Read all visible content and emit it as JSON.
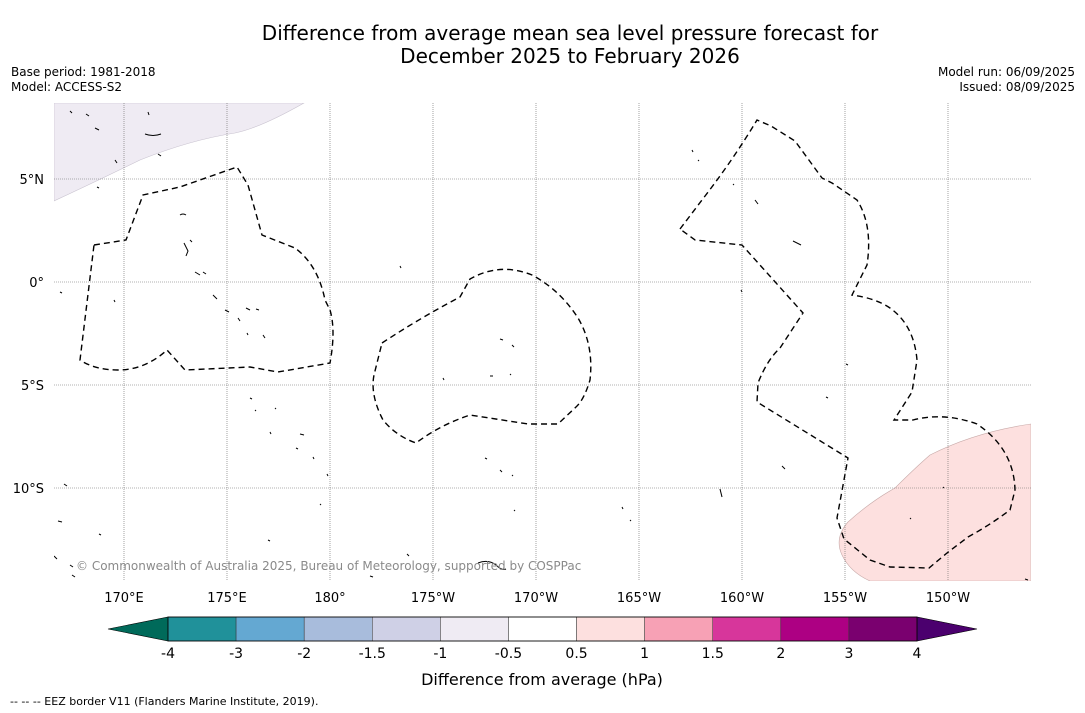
{
  "title": {
    "line1": "Difference from average mean sea level pressure forecast for",
    "line2": "December 2025 to February 2026"
  },
  "meta_left": {
    "base_period": "Base period: 1981-2018",
    "model": "Model: ACCESS-S2"
  },
  "meta_right": {
    "model_run": "Model run: 06/09/2025",
    "issued": "Issued: 08/09/2025"
  },
  "map": {
    "lat_labels": [
      "5°N",
      "0°",
      "5°S",
      "10°S"
    ],
    "lon_labels": [
      "170°E",
      "175°E",
      "180°",
      "175°W",
      "170°W",
      "165°W",
      "160°W",
      "155°W",
      "150°W"
    ],
    "copyright": "© Commonwealth of Australia 2025, Bureau of Meteorology, supported by COSPPac"
  },
  "colorbar": {
    "labels": [
      "-4",
      "-3",
      "-2",
      "-1.5",
      "-1",
      "-0.5",
      "0.5",
      "1",
      "1.5",
      "2",
      "3",
      "4"
    ],
    "colors": [
      "#007060",
      "#20919a",
      "#64a8d2",
      "#a8bcdc",
      "#cfd0e6",
      "#efebf3",
      "#ffffff",
      "#fde0df",
      "#f7a1b5",
      "#d7369b",
      "#ad0083",
      "#7a006f"
    ],
    "under_color": "#006a5a",
    "over_color": "#4b006e",
    "label": "Difference from average (hPa)"
  },
  "legend_note": "--  --  -- EEZ border V11 (Flanders Marine Institute, 2019)."
}
